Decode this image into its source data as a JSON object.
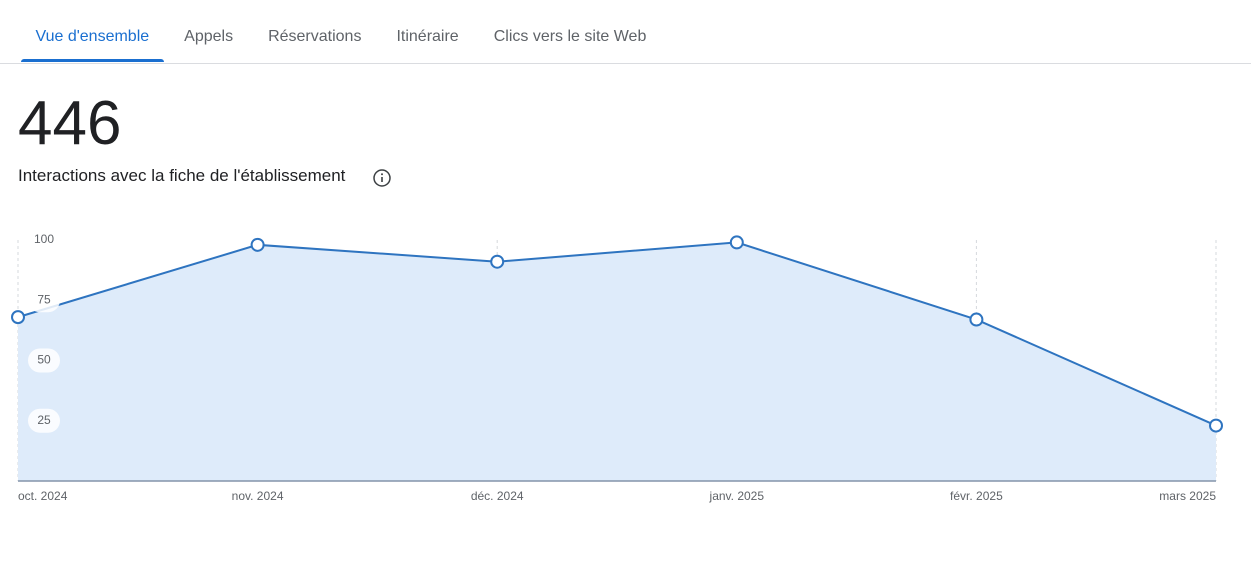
{
  "tabs": [
    "Vue d'ensemble",
    "Appels",
    "Réservations",
    "Itinéraire",
    "Clics vers le site Web"
  ],
  "total": "446",
  "total_label": "Interactions avec la fiche de l'établissement",
  "chart_data": {
    "type": "line",
    "categories": [
      "oct. 2024",
      "nov. 2024",
      "déc. 2024",
      "janv. 2025",
      "févr. 2025",
      "mars 2025"
    ],
    "values": [
      68,
      98,
      91,
      99,
      67,
      23
    ],
    "color": "#2e74c0",
    "ylim": [
      0,
      100
    ],
    "yticks": [
      25,
      50,
      75,
      100
    ],
    "grid": true
  }
}
